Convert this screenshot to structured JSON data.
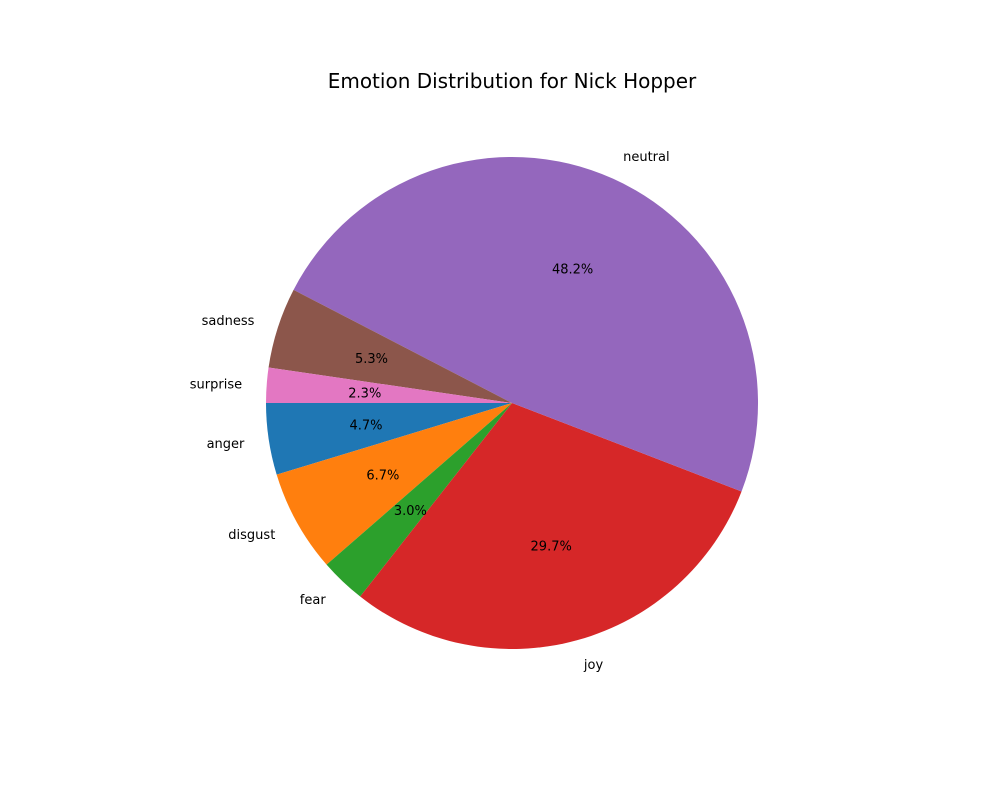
{
  "chart_data": {
    "type": "pie",
    "title": "Emotion Distribution for Nick Hopper",
    "start_angle_deg": 180,
    "direction": "counterclockwise",
    "slices": [
      {
        "label": "anger",
        "value": 4.7,
        "pct_text": "4.7%",
        "color": "#1f77b4"
      },
      {
        "label": "disgust",
        "value": 6.7,
        "pct_text": "6.7%",
        "color": "#ff7f0e"
      },
      {
        "label": "fear",
        "value": 3.0,
        "pct_text": "3.0%",
        "color": "#2ca02c"
      },
      {
        "label": "joy",
        "value": 29.7,
        "pct_text": "29.7%",
        "color": "#d62728"
      },
      {
        "label": "neutral",
        "value": 48.2,
        "pct_text": "48.2%",
        "color": "#9467bd"
      },
      {
        "label": "sadness",
        "value": 5.3,
        "pct_text": "5.3%",
        "color": "#8c564b"
      },
      {
        "label": "surprise",
        "value": 2.3,
        "pct_text": "2.3%",
        "color": "#e377c2"
      }
    ]
  }
}
